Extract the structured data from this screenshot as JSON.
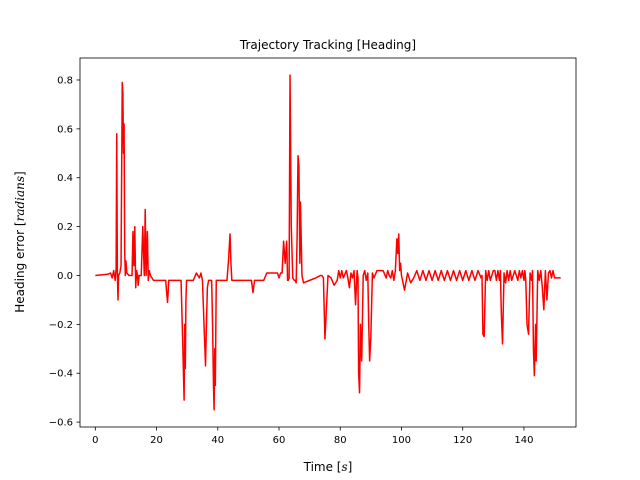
{
  "chart_data": {
    "type": "line",
    "title": "Trajectory Tracking [Heading]",
    "xlabel_main": "Time [",
    "xlabel_unit": "s",
    "xlabel_end": "]",
    "ylabel_main": "Heading error [",
    "ylabel_unit": "radians",
    "ylabel_end": "]",
    "xlim": [
      -5,
      157
    ],
    "ylim": [
      -0.62,
      0.89
    ],
    "xticks": [
      0,
      20,
      40,
      60,
      80,
      100,
      120,
      140
    ],
    "xtick_labels": [
      "0",
      "20",
      "40",
      "60",
      "80",
      "100",
      "120",
      "140"
    ],
    "yticks": [
      -0.6,
      -0.4,
      -0.2,
      0.0,
      0.2,
      0.4,
      0.6,
      0.8
    ],
    "ytick_labels": [
      "−0.6",
      "−0.4",
      "−0.2",
      "0.0",
      "0.2",
      "0.4",
      "0.6",
      "0.8"
    ],
    "grid": false,
    "series": [
      {
        "color": "#ff0000",
        "x": [
          0,
          4,
          5,
          5.5,
          6,
          6.5,
          6.8,
          7.0,
          7.2,
          7.4,
          7.6,
          8.0,
          8.4,
          8.8,
          9.0,
          9.2,
          9.4,
          9.6,
          9.8,
          10.0,
          10.3,
          11,
          12,
          12.3,
          12.6,
          12.9,
          13.2,
          13.5,
          13.8,
          14.0,
          14.3,
          15,
          15.5,
          16,
          16.3,
          16.6,
          17,
          17.3,
          17.6,
          18,
          19,
          20,
          21,
          22,
          22.5,
          23,
          23.3,
          23.6,
          24,
          26,
          27,
          27.5,
          28,
          28.5,
          29.0,
          29.2,
          29.4,
          29.6,
          29.8,
          30.2,
          31,
          32,
          33,
          34,
          34.5,
          35,
          35.5,
          35.8,
          36.0,
          36.2,
          36.6,
          37,
          37.5,
          38,
          38.3,
          38.6,
          38.8,
          39.0,
          39.2,
          39.5,
          40,
          41,
          42,
          43,
          43.5,
          44,
          44.3,
          44.6,
          45,
          46,
          47,
          48,
          49,
          50,
          50.5,
          51,
          51.5,
          52,
          53,
          54,
          55,
          56,
          57,
          58,
          58.5,
          59,
          59.5,
          60,
          60.5,
          61,
          61.5,
          62,
          62.5,
          62.8,
          63.0,
          63.3,
          63.6,
          64,
          64.5,
          65,
          65.3,
          65.6,
          65.9,
          66.2,
          66.5,
          66.8,
          67,
          67.5,
          68,
          70,
          72,
          73.5,
          74.0,
          74.5,
          75,
          76,
          77,
          78,
          79,
          79.5,
          80,
          80.5,
          81,
          82,
          82.5,
          83,
          83.5,
          84,
          84.5,
          85,
          85.5,
          85.8,
          86.0,
          86.3,
          86.6,
          87,
          87.5,
          88,
          88.5,
          89.0,
          89.3,
          89.6,
          90,
          90.5,
          91,
          92,
          93,
          94,
          95,
          95.5,
          96,
          96.5,
          97,
          97.5,
          98,
          98.5,
          98.8,
          99.1,
          99.4,
          99.7,
          100,
          100.5,
          101,
          102,
          103,
          104,
          105,
          106,
          107,
          108,
          109,
          110,
          111,
          112,
          113,
          114,
          115,
          116,
          117,
          118,
          119,
          120,
          121,
          122,
          123,
          124,
          125,
          126,
          126.3,
          126.6,
          127,
          127.5,
          128,
          128.5,
          129,
          130,
          130.5,
          131,
          131.5,
          132,
          132.3,
          132.6,
          133,
          133.5,
          134,
          134.5,
          135,
          135.5,
          136,
          137,
          138,
          138.5,
          139,
          139.5,
          140,
          140.3,
          140.6,
          141,
          141.5,
          142,
          142.5,
          142.8,
          143.1,
          143.4,
          143.8,
          144,
          144.5,
          145,
          145.5,
          146,
          146.5,
          147,
          147.5,
          148,
          148.5,
          149,
          149.5,
          150,
          151,
          152
        ],
        "y": [
          0.0,
          0.005,
          0.01,
          -0.01,
          0.02,
          -0.02,
          0.03,
          0.58,
          0.02,
          -0.1,
          0.0,
          0.01,
          0.04,
          0.79,
          0.75,
          0.5,
          0.62,
          0.1,
          0.0,
          0.06,
          0.01,
          0.0,
          0.0,
          0.18,
          0.04,
          0.2,
          -0.05,
          0.02,
          0.0,
          -0.04,
          0.0,
          0.0,
          0.2,
          0.0,
          0.27,
          0.0,
          0.18,
          -0.02,
          0.02,
          0.0,
          -0.02,
          -0.02,
          -0.02,
          -0.02,
          -0.02,
          -0.02,
          -0.07,
          -0.11,
          -0.02,
          -0.02,
          -0.02,
          -0.02,
          -0.02,
          -0.25,
          -0.51,
          -0.2,
          -0.38,
          -0.1,
          -0.02,
          -0.02,
          -0.02,
          -0.02,
          0.01,
          -0.01,
          0.01,
          -0.02,
          -0.2,
          -0.3,
          -0.37,
          -0.25,
          -0.05,
          -0.02,
          -0.02,
          -0.02,
          -0.2,
          -0.45,
          -0.55,
          -0.3,
          -0.45,
          -0.02,
          -0.02,
          -0.02,
          -0.02,
          -0.02,
          0.06,
          0.17,
          0.05,
          -0.02,
          -0.02,
          -0.02,
          -0.02,
          -0.02,
          -0.02,
          -0.02,
          -0.02,
          -0.02,
          -0.07,
          -0.02,
          -0.02,
          -0.02,
          -0.02,
          0.01,
          0.01,
          0.01,
          0.01,
          0.01,
          0.01,
          -0.01,
          0.01,
          0.01,
          0.14,
          0.05,
          0.14,
          -0.02,
          -0.02,
          -0.01,
          0.82,
          0.2,
          -0.01,
          -0.02,
          -0.02,
          -0.03,
          0.15,
          0.49,
          0.45,
          0.05,
          0.3,
          0.0,
          -0.03,
          -0.02,
          -0.01,
          0.0,
          0.0,
          -0.01,
          -0.26,
          0.0,
          -0.01,
          -0.04,
          -0.02,
          0.02,
          -0.01,
          0.02,
          -0.01,
          0.02,
          -0.01,
          -0.05,
          0.01,
          -0.01,
          0.02,
          -0.12,
          0.02,
          -0.01,
          -0.4,
          -0.48,
          -0.2,
          -0.35,
          0.0,
          0.02,
          -0.02,
          0.01,
          -0.2,
          -0.35,
          -0.25,
          0.01,
          -0.01,
          0.02,
          0.02,
          0.02,
          -0.01,
          0.02,
          0.0,
          -0.01,
          0.02,
          -0.02,
          0.02,
          0.15,
          0.09,
          0.17,
          0.02,
          0.05,
          0.0,
          -0.03,
          -0.06,
          0.01,
          -0.03,
          -0.01,
          0.02,
          -0.02,
          0.02,
          -0.02,
          0.02,
          -0.02,
          0.02,
          -0.02,
          0.02,
          -0.02,
          0.02,
          -0.02,
          0.02,
          -0.02,
          0.02,
          -0.02,
          0.02,
          -0.02,
          0.02,
          -0.02,
          0.02,
          -0.01,
          0.0,
          -0.24,
          -0.25,
          0.02,
          -0.02,
          0.02,
          -0.02,
          0.02,
          0.02,
          -0.02,
          0.02,
          -0.02,
          0.02,
          -0.15,
          -0.28,
          0.01,
          -0.03,
          0.02,
          -0.02,
          0.02,
          -0.02,
          0.02,
          -0.02,
          0.02,
          -0.01,
          0.02,
          -0.02,
          0.02,
          -0.02,
          -0.2,
          -0.24,
          0.01,
          -0.02,
          0.02,
          -0.3,
          -0.41,
          -0.2,
          -0.35,
          0.02,
          -0.02,
          0.02,
          -0.05,
          -0.14,
          0.02,
          -0.1,
          0.01,
          0.02,
          -0.01,
          0.02,
          -0.01,
          -0.01,
          -0.01
        ]
      }
    ]
  }
}
